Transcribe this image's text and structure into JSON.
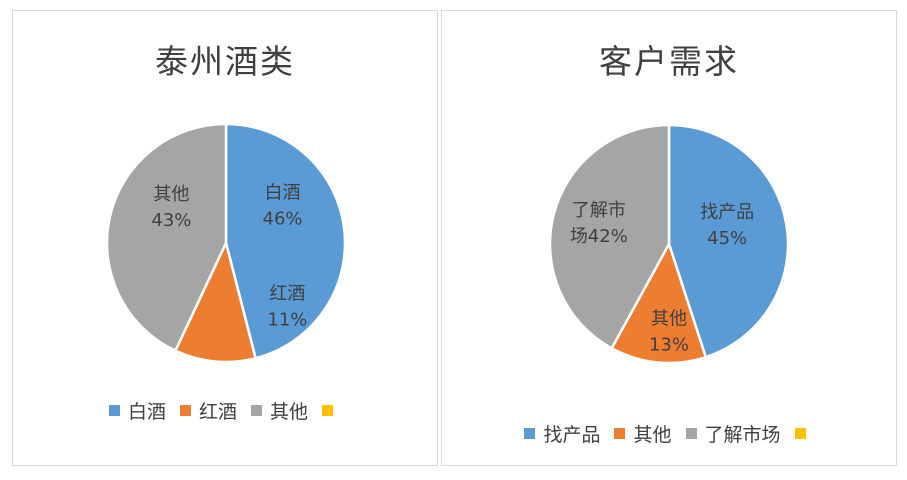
{
  "chart_data": [
    {
      "type": "pie",
      "title": "泰州酒类",
      "categories": [
        "白酒",
        "红酒",
        "其他",
        ""
      ],
      "values": [
        46,
        11,
        43,
        0
      ],
      "slice_labels": [
        {
          "name": "白酒",
          "pct": "46%"
        },
        {
          "name": "红酒",
          "pct": "11%"
        },
        {
          "name": "其他",
          "pct": "43%"
        },
        null
      ],
      "colors": [
        "#5b9bd5",
        "#ed7d31",
        "#a5a5a5",
        "#ffc000"
      ],
      "legend_position": "bottom"
    },
    {
      "type": "pie",
      "title": "客户需求",
      "categories": [
        "找产品",
        "其他",
        "了解市场",
        ""
      ],
      "values": [
        45,
        13,
        42,
        0
      ],
      "slice_labels": [
        {
          "name": "找产品",
          "pct": "45%"
        },
        {
          "name": "其他",
          "pct": "13%"
        },
        {
          "name": "了解市",
          "pct": "场42%"
        },
        null
      ],
      "colors": [
        "#5b9bd5",
        "#ed7d31",
        "#a5a5a5",
        "#ffc000"
      ],
      "legend_position": "bottom"
    }
  ]
}
